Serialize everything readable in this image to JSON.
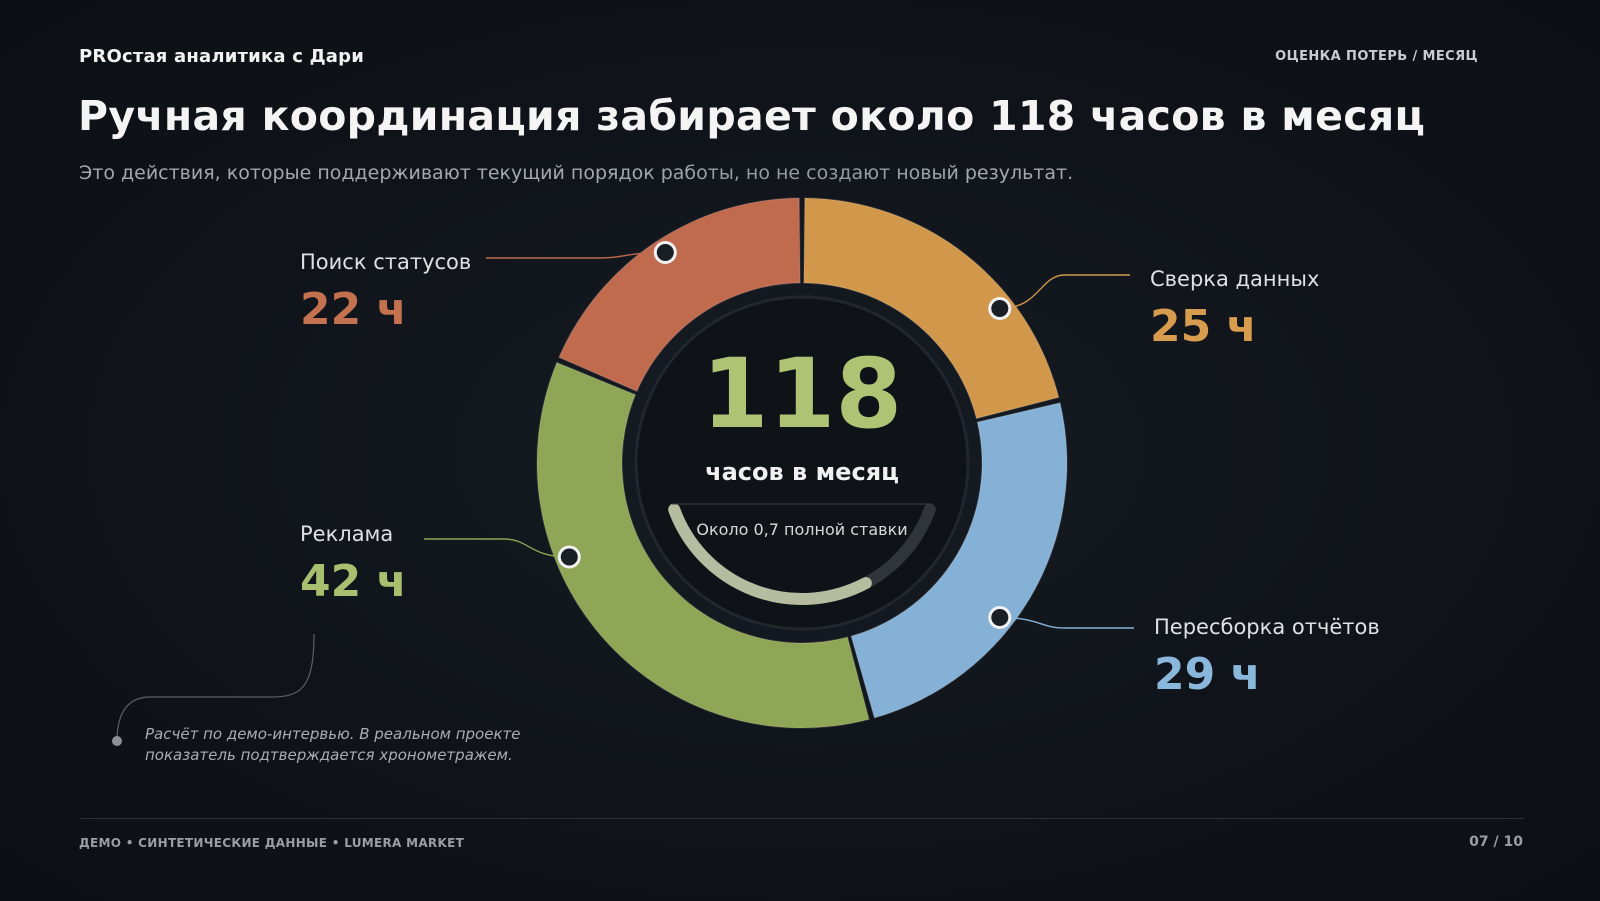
{
  "header": {
    "brand": "PROстая аналитика с Дари",
    "section_tag": "ОЦЕНКА ПОТЕРЬ / МЕСЯЦ"
  },
  "title": "Ручная координация забирает около 118 часов в месяц",
  "subtitle": "Это действия, которые поддерживают текущий порядок работы, но не создают новый результат.",
  "center": {
    "total": "118",
    "unit": "часов в месяц",
    "note": "Около 0,7 полной ставки",
    "fte_fraction": 0.7
  },
  "segment_display": [
    {
      "label": "Поиск статусов",
      "value_text": "22 ч"
    },
    {
      "label": "Сверка данных",
      "value_text": "25 ч"
    },
    {
      "label": "Пересборка отчётов",
      "value_text": "29 ч"
    },
    {
      "label": "Реклама",
      "value_text": "42 ч"
    }
  ],
  "footnote": {
    "line1": "Расчёт по демо-интервью. В реальном проекте",
    "line2": "показатель подтверждается хронометражем."
  },
  "footer": {
    "left": "ДЕМО • СИНТЕТИЧЕСКИЕ ДАННЫЕ • LUMERA MARKET",
    "page": "07 / 10"
  },
  "chart_data": {
    "type": "pie",
    "title": "Ручная координация забирает около 118 часов в месяц",
    "total": 118,
    "unit": "ч",
    "series": [
      {
        "name": "Поиск статусов",
        "value": 22,
        "color": "#c06a4e"
      },
      {
        "name": "Сверка данных",
        "value": 25,
        "color": "#d1984c"
      },
      {
        "name": "Пересборка отчётов",
        "value": 29,
        "color": "#86b1d6"
      },
      {
        "name": "Реклама",
        "value": 42,
        "color": "#8ea655"
      }
    ],
    "ring_style": "donut",
    "start_angle_deg": -90
  }
}
